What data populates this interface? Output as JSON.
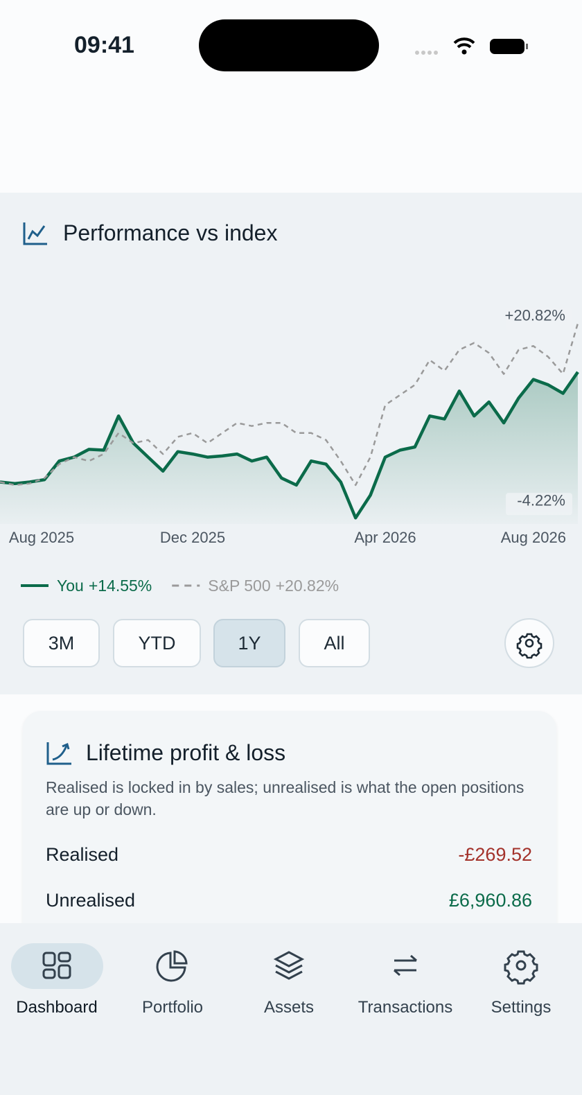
{
  "status_bar": {
    "time": "09:41"
  },
  "chart_data": {
    "type": "line",
    "title": "Performance vs index",
    "x": [
      0,
      1,
      2,
      3,
      4,
      5,
      6,
      7,
      8,
      9,
      10,
      11,
      12,
      13,
      14,
      15,
      16,
      17,
      18,
      19,
      20,
      21,
      22,
      23,
      24,
      25,
      26,
      27,
      28,
      29,
      30,
      31,
      32,
      33,
      34,
      35,
      36,
      37,
      38,
      39
    ],
    "xlim": [
      0,
      39
    ],
    "xticks": [
      {
        "value": 2.8,
        "label": "Aug 2025"
      },
      {
        "value": 13,
        "label": "Dec 2025"
      },
      {
        "value": 26,
        "label": "Apr 2026"
      },
      {
        "value": 36,
        "label": "Aug 2026"
      }
    ],
    "ylim": [
      -5,
      28
    ],
    "series": [
      {
        "name": "You",
        "change_label": "+14.55%",
        "color": "#0b6b4a",
        "dashed": false,
        "area": true,
        "values": [
          0.4,
          0.2,
          0.4,
          0.7,
          3.1,
          3.6,
          4.6,
          4.5,
          8.9,
          5.4,
          3.6,
          1.8,
          4.3,
          4.0,
          3.6,
          3.75,
          4.0,
          3.1,
          3.6,
          0.9,
          0,
          3.1,
          2.7,
          0.4,
          -4.22,
          -1.3,
          3.6,
          4.5,
          4.9,
          8.9,
          8.5,
          12.1,
          8.9,
          10.7,
          8.0,
          11.2,
          13.6,
          12.9,
          11.8,
          14.55
        ]
      },
      {
        "name": "S&P 500",
        "change_label": "+20.82%",
        "color": "#9a9a9a",
        "dashed": true,
        "area": false,
        "values": [
          0.4,
          0,
          0.2,
          0.9,
          2.7,
          3.6,
          3.1,
          4.0,
          6.7,
          5.4,
          5.8,
          4.0,
          6.2,
          6.7,
          5.4,
          6.7,
          8.0,
          7.6,
          8.0,
          8.0,
          6.7,
          6.7,
          5.8,
          3.1,
          0,
          3.6,
          10.3,
          11.6,
          12.9,
          16.1,
          14.7,
          17.4,
          18.3,
          17.0,
          14.3,
          17.4,
          17.9,
          16.5,
          14.3,
          20.82
        ]
      }
    ],
    "annotations": [
      {
        "text": "+20.82%",
        "value": 20.82
      },
      {
        "text": "-4.22%",
        "value": -4.22
      }
    ]
  },
  "range_buttons": {
    "options": [
      "3M",
      "YTD",
      "1Y",
      "All"
    ],
    "selected": 2
  },
  "card": {
    "title": "Lifetime profit & loss",
    "description": "Realised is locked in by sales; unrealised is what the open positions are up or down.",
    "rows": [
      {
        "label": "Realised",
        "value": "-£269.52",
        "color": "#a3322b"
      },
      {
        "label": "Unrealised",
        "value": "£6,960.86",
        "color": "#0b6b4a"
      }
    ]
  },
  "nav": {
    "items": [
      "Dashboard",
      "Portfolio",
      "Assets",
      "Transactions",
      "Settings"
    ],
    "active": 0
  }
}
